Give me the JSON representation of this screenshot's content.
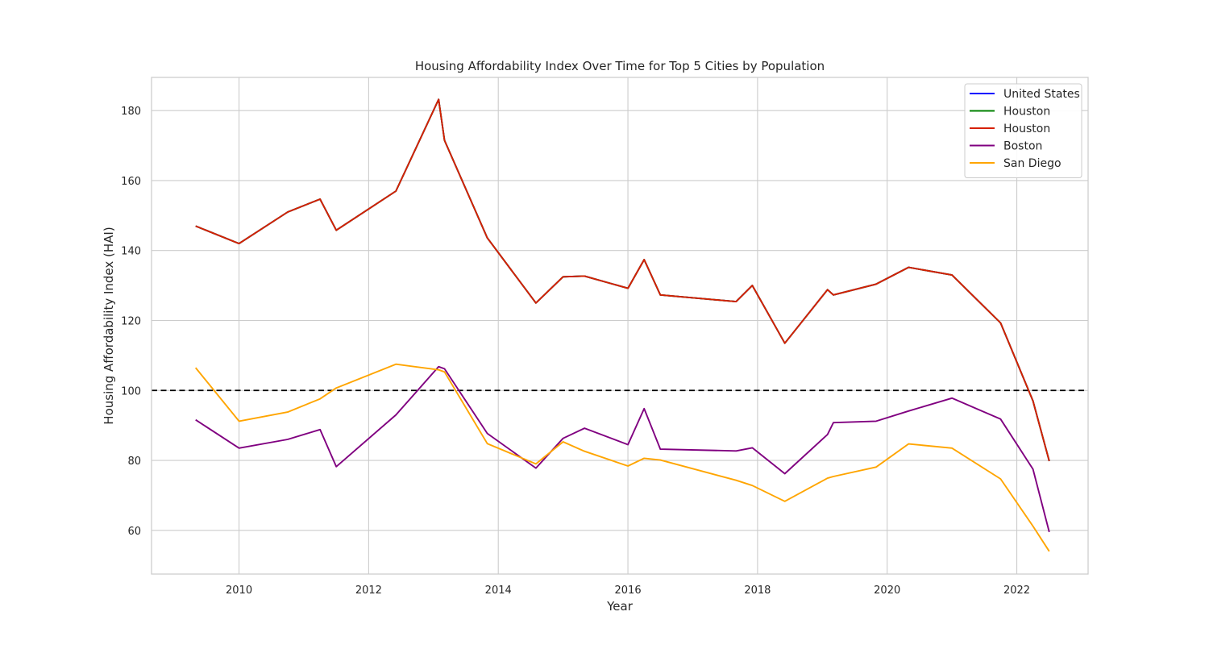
{
  "chart_data": {
    "type": "line",
    "title": "Housing Affordability Index Over Time for Top 5 Cities by Population",
    "xlabel": "Year",
    "ylabel": "Housing Affordability Index (HAI)",
    "xlim": [
      2008.65,
      2023.1
    ],
    "ylim": [
      47.5,
      189.5
    ],
    "xticks": [
      2010,
      2012,
      2014,
      2016,
      2018,
      2020,
      2022
    ],
    "yticks": [
      60,
      80,
      100,
      120,
      140,
      160,
      180
    ],
    "grid": true,
    "legend_position": "top-right",
    "reference_line": {
      "y": 100,
      "color": "#000000",
      "style": "dashed"
    },
    "series": [
      {
        "name": "United States",
        "color": "#0000ff",
        "x": [
          2009.33,
          2010.0,
          2010.75,
          2011.25,
          2011.5,
          2012.42,
          2013.08,
          2013.17,
          2013.83,
          2014.58,
          2015.0,
          2015.33,
          2016.0,
          2016.25,
          2016.5,
          2017.67,
          2017.92,
          2018.42,
          2019.08,
          2019.17,
          2019.83,
          2020.33,
          2021.0,
          2021.75,
          2022.25,
          2022.5
        ],
        "values": [
          147,
          142,
          151,
          154.7,
          145.8,
          157,
          183.2,
          171.5,
          143.6,
          125,
          132.5,
          132.7,
          129.2,
          137.4,
          127.3,
          125.4,
          130,
          113.5,
          128.8,
          127.3,
          130.4,
          135.2,
          133,
          119.3,
          97,
          79.8
        ]
      },
      {
        "name": "Houston",
        "color": "#008000",
        "x": [
          2009.33,
          2010.0,
          2010.75,
          2011.25,
          2011.5,
          2012.42,
          2013.08,
          2013.17,
          2013.83,
          2014.58,
          2015.0,
          2015.33,
          2016.0,
          2016.25,
          2016.5,
          2017.67,
          2017.92,
          2018.42,
          2019.08,
          2019.17,
          2019.83,
          2020.33,
          2021.0,
          2021.75,
          2022.25,
          2022.5
        ],
        "values": [
          147,
          142,
          151,
          154.7,
          145.8,
          157,
          183.2,
          171.5,
          143.6,
          125,
          132.5,
          132.7,
          129.2,
          137.4,
          127.3,
          125.4,
          130,
          113.5,
          128.8,
          127.3,
          130.4,
          135.2,
          133,
          119.3,
          97,
          79.8
        ]
      },
      {
        "name": "Houston",
        "color": "#d62000",
        "x": [
          2009.33,
          2010.0,
          2010.75,
          2011.25,
          2011.5,
          2012.42,
          2013.08,
          2013.17,
          2013.83,
          2014.58,
          2015.0,
          2015.33,
          2016.0,
          2016.25,
          2016.5,
          2017.67,
          2017.92,
          2018.42,
          2019.08,
          2019.17,
          2019.83,
          2020.33,
          2021.0,
          2021.75,
          2022.25,
          2022.5
        ],
        "values": [
          147,
          142,
          151,
          154.7,
          145.8,
          157,
          183.2,
          171.5,
          143.6,
          125,
          132.5,
          132.7,
          129.2,
          137.4,
          127.3,
          125.4,
          130,
          113.5,
          128.8,
          127.3,
          130.4,
          135.2,
          133,
          119.3,
          97,
          79.8
        ]
      },
      {
        "name": "Boston",
        "color": "#800080",
        "x": [
          2009.33,
          2010.0,
          2010.75,
          2011.25,
          2011.5,
          2012.42,
          2013.08,
          2013.17,
          2013.83,
          2014.58,
          2015.0,
          2015.33,
          2016.0,
          2016.25,
          2016.5,
          2017.67,
          2017.92,
          2018.42,
          2019.08,
          2019.17,
          2019.83,
          2020.33,
          2021.0,
          2021.75,
          2022.25,
          2022.5
        ],
        "values": [
          91.6,
          83.5,
          86,
          88.8,
          78.2,
          93,
          106.8,
          106.2,
          87.7,
          77.8,
          86.3,
          89.2,
          84.5,
          94.8,
          83.2,
          82.7,
          83.6,
          76.2,
          87.4,
          90.8,
          91.2,
          94.1,
          97.8,
          91.8,
          77.5,
          59.5
        ]
      },
      {
        "name": "San Diego",
        "color": "#ffa500",
        "x": [
          2009.33,
          2010.0,
          2010.75,
          2011.25,
          2011.5,
          2012.42,
          2013.08,
          2013.17,
          2013.83,
          2014.58,
          2015.0,
          2015.33,
          2016.0,
          2016.25,
          2016.5,
          2017.67,
          2017.92,
          2018.42,
          2019.08,
          2019.17,
          2019.83,
          2020.33,
          2021.0,
          2021.75,
          2022.25,
          2022.5
        ],
        "values": [
          106.5,
          91.2,
          93.8,
          97.6,
          100.7,
          107.5,
          105.9,
          105.3,
          84.8,
          79,
          85.3,
          82.6,
          78.4,
          80.6,
          80.1,
          74.3,
          72.8,
          68.3,
          74.9,
          75.4,
          78.1,
          84.7,
          83.5,
          74.7,
          61.2,
          54
        ]
      }
    ]
  }
}
